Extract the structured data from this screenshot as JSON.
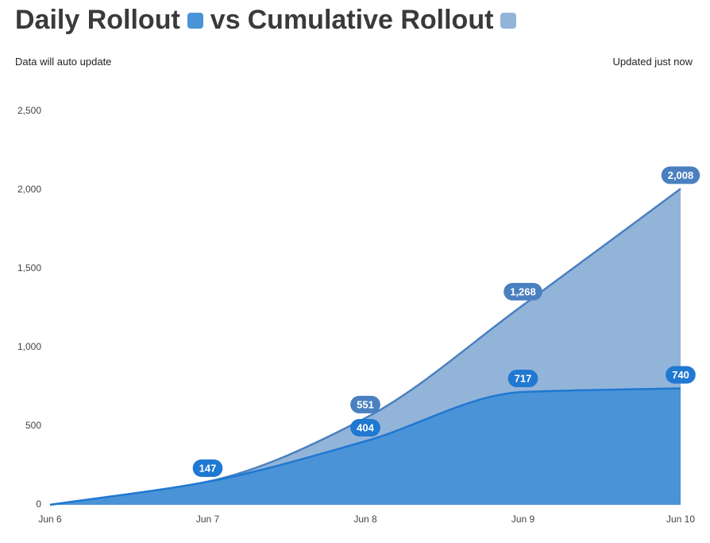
{
  "chart_data": {
    "type": "area",
    "title_joiner": "vs",
    "subtitle": "Data will auto update",
    "status": "Updated just now",
    "categories": [
      "Jun 6",
      "Jun 7",
      "Jun 8",
      "Jun 9",
      "Jun 10"
    ],
    "series": [
      {
        "name": "Daily Rollout",
        "color": "#1f78d1",
        "fill": "#4a93d6",
        "values": [
          0,
          147,
          404,
          717,
          740
        ],
        "value_labels": [
          null,
          "147",
          "404",
          "717",
          "740"
        ]
      },
      {
        "name": "Cumulative Rollout",
        "color": "#4a80bf",
        "fill": "#93b4d9",
        "values": [
          0,
          147,
          551,
          1268,
          2008
        ],
        "value_labels": [
          null,
          null,
          "551",
          "1,268",
          "2,008"
        ]
      }
    ],
    "ylim": [
      0,
      2500
    ],
    "yticks": [
      0,
      500,
      {
        "value": 1000,
        "label": "1,000"
      },
      {
        "value": 1500,
        "label": "1,500"
      },
      {
        "value": 2000,
        "label": "2,000"
      },
      {
        "value": 2500,
        "label": "2,500"
      }
    ]
  }
}
